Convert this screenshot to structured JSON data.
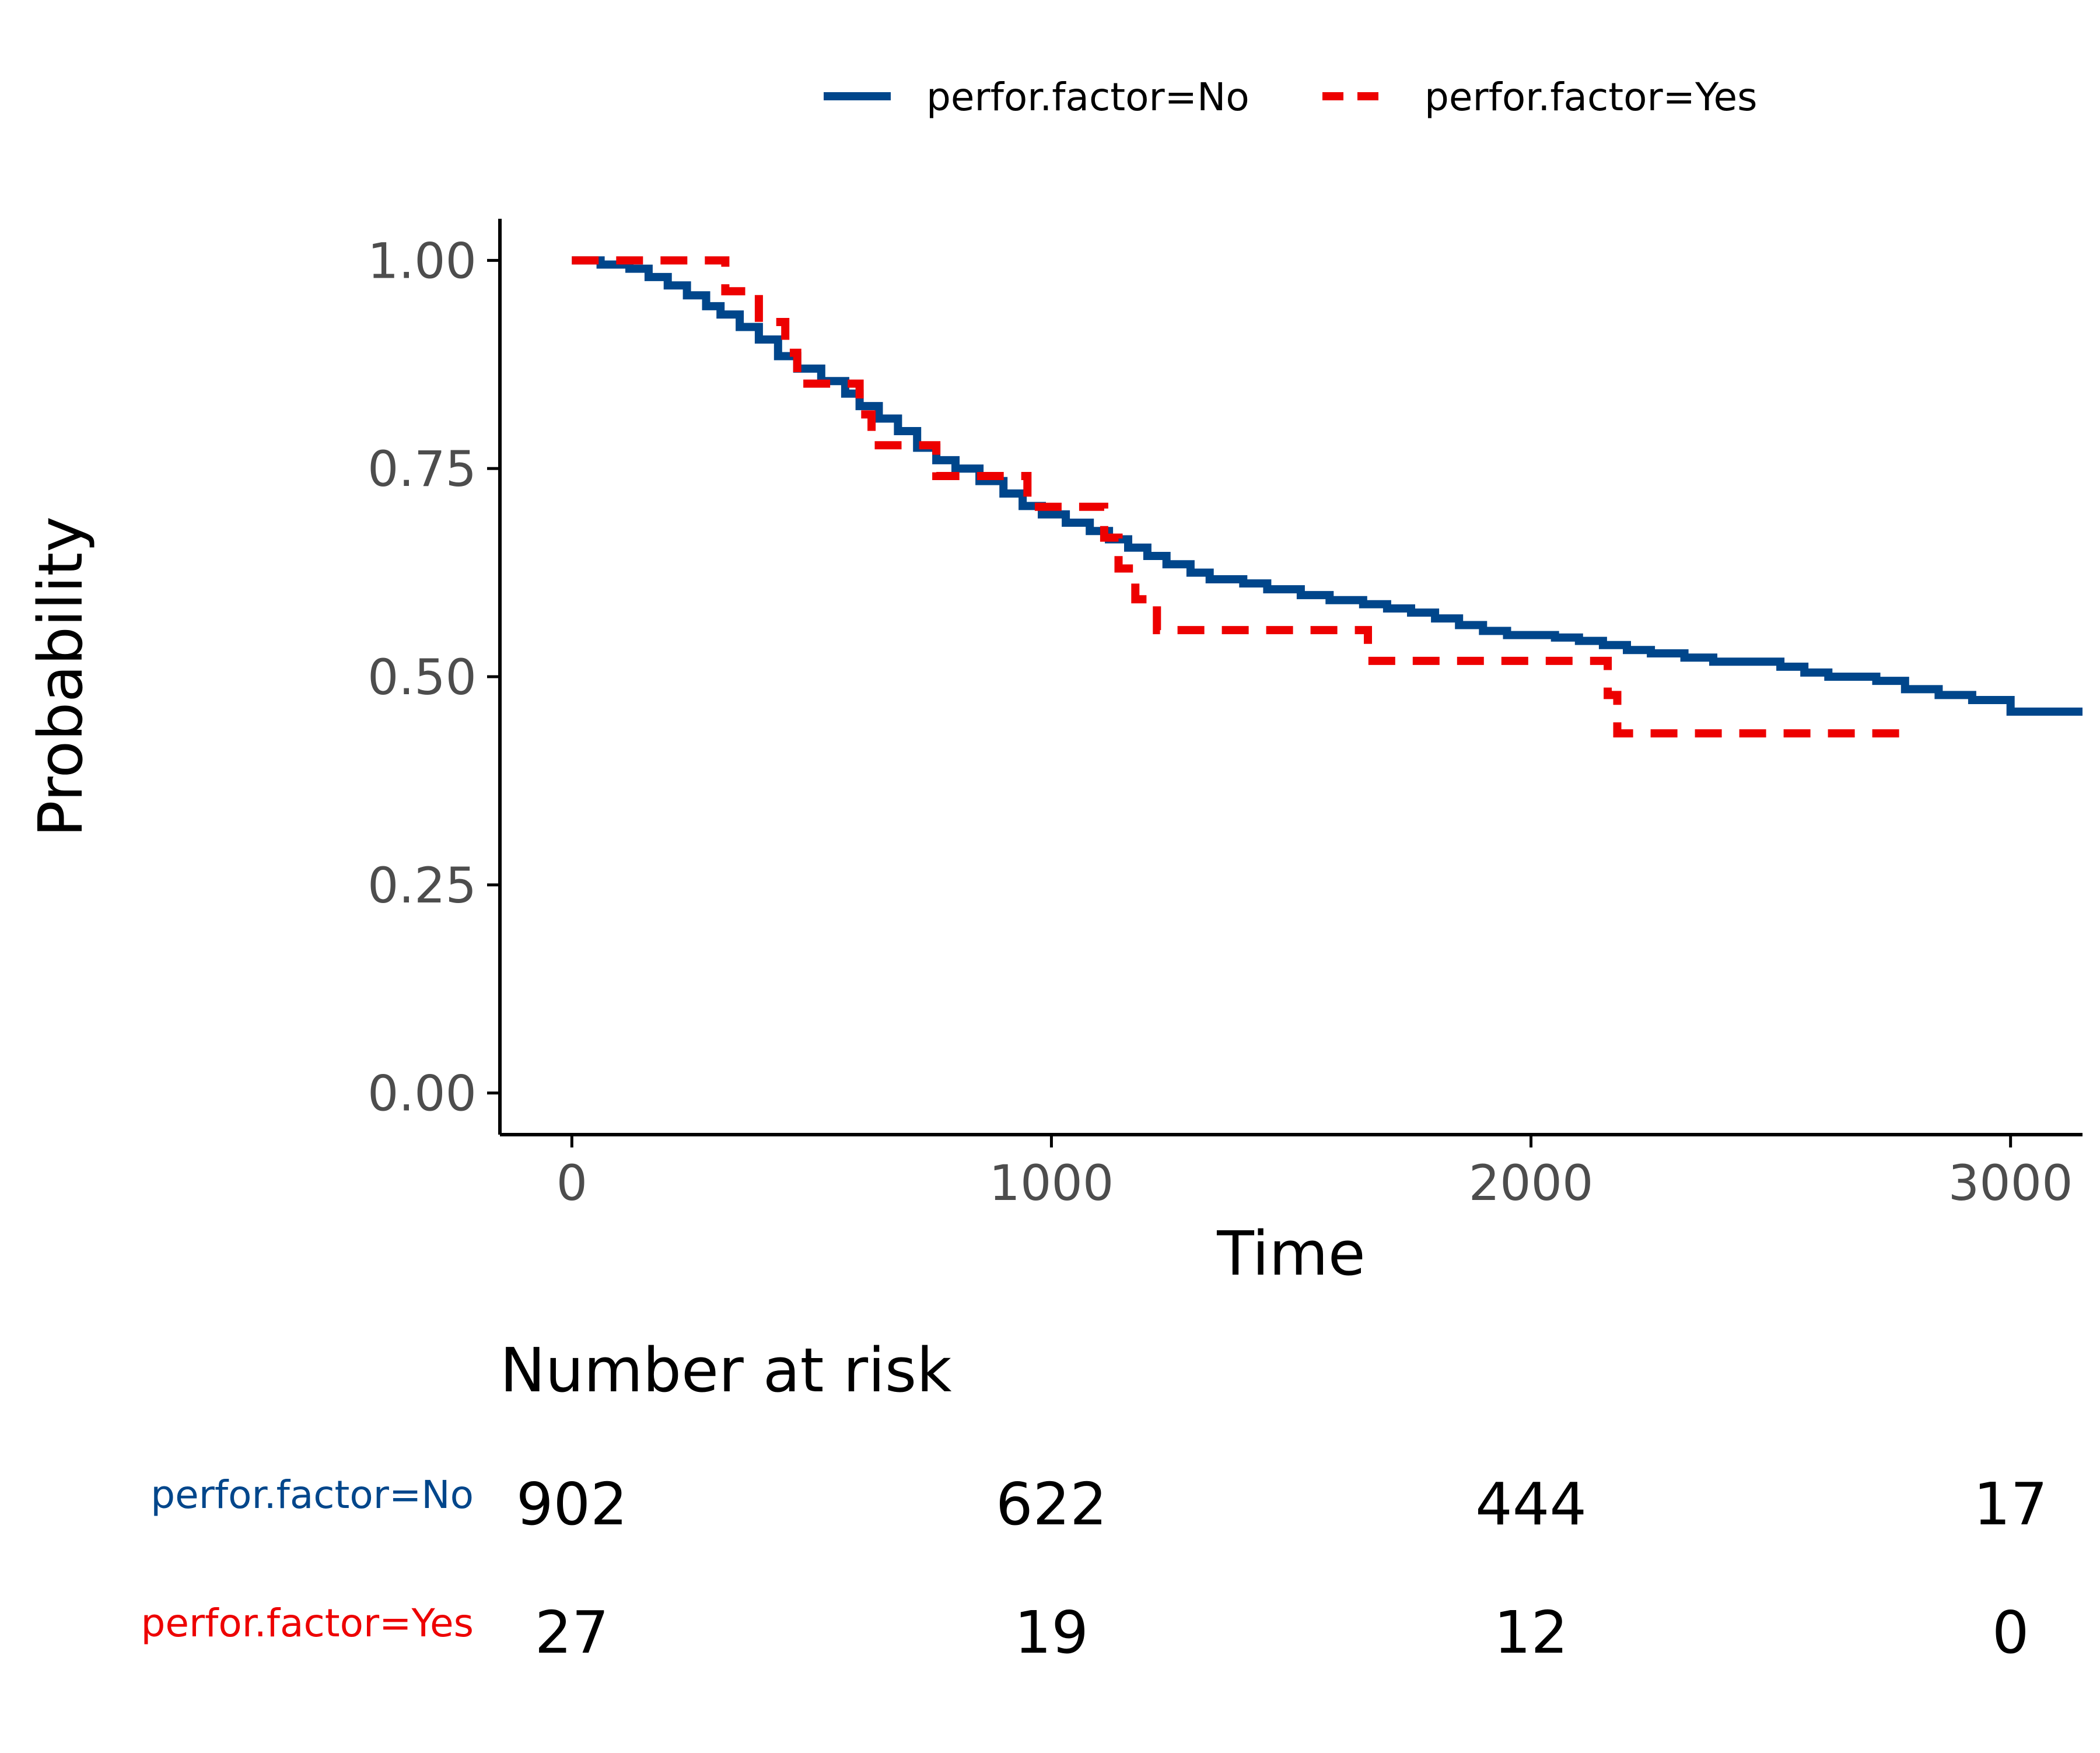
{
  "chart_data": {
    "type": "line",
    "subtype": "kaplan-meier survival curve with risk table",
    "xlabel": "Time",
    "ylabel": "Probability",
    "xlim": [
      -150,
      3150
    ],
    "ylim": [
      -0.05,
      1.05
    ],
    "x_ticks": [
      0,
      1000,
      2000,
      3000
    ],
    "x_tick_labels": [
      "0",
      "1000",
      "2000",
      "3000"
    ],
    "y_ticks": [
      0,
      0.25,
      0.5,
      0.75,
      1.0
    ],
    "y_tick_labels": [
      "0.00",
      "0.25",
      "0.50",
      "0.75",
      "1.00"
    ],
    "grid": false,
    "legend_position": "top",
    "series": [
      {
        "name": "perfor.factor=No",
        "color": "#00468B",
        "line_style": "solid",
        "steps": [
          [
            0,
            1.0
          ],
          [
            60,
            0.995
          ],
          [
            120,
            0.99
          ],
          [
            160,
            0.98
          ],
          [
            200,
            0.97
          ],
          [
            240,
            0.958
          ],
          [
            280,
            0.945
          ],
          [
            310,
            0.935
          ],
          [
            350,
            0.92
          ],
          [
            390,
            0.905
          ],
          [
            430,
            0.885
          ],
          [
            470,
            0.87
          ],
          [
            520,
            0.855
          ],
          [
            570,
            0.84
          ],
          [
            600,
            0.825
          ],
          [
            640,
            0.81
          ],
          [
            680,
            0.795
          ],
          [
            720,
            0.775
          ],
          [
            760,
            0.76
          ],
          [
            800,
            0.75
          ],
          [
            850,
            0.735
          ],
          [
            900,
            0.72
          ],
          [
            940,
            0.705
          ],
          [
            980,
            0.695
          ],
          [
            1030,
            0.685
          ],
          [
            1080,
            0.675
          ],
          [
            1120,
            0.665
          ],
          [
            1160,
            0.655
          ],
          [
            1200,
            0.645
          ],
          [
            1240,
            0.635
          ],
          [
            1290,
            0.625
          ],
          [
            1330,
            0.617
          ],
          [
            1400,
            0.612
          ],
          [
            1450,
            0.605
          ],
          [
            1520,
            0.598
          ],
          [
            1580,
            0.592
          ],
          [
            1650,
            0.587
          ],
          [
            1700,
            0.582
          ],
          [
            1750,
            0.577
          ],
          [
            1800,
            0.57
          ],
          [
            1850,
            0.562
          ],
          [
            1900,
            0.555
          ],
          [
            1950,
            0.55
          ],
          [
            2050,
            0.547
          ],
          [
            2100,
            0.543
          ],
          [
            2150,
            0.538
          ],
          [
            2200,
            0.532
          ],
          [
            2250,
            0.528
          ],
          [
            2320,
            0.523
          ],
          [
            2380,
            0.518
          ],
          [
            2520,
            0.512
          ],
          [
            2570,
            0.505
          ],
          [
            2620,
            0.5
          ],
          [
            2720,
            0.495
          ],
          [
            2780,
            0.485
          ],
          [
            2850,
            0.478
          ],
          [
            2920,
            0.472
          ],
          [
            3000,
            0.458
          ],
          [
            3150,
            0.458
          ]
        ]
      },
      {
        "name": "perfor.factor=Yes",
        "color": "#ED0000",
        "line_style": "dashed",
        "steps": [
          [
            0,
            1.0
          ],
          [
            320,
            0.963
          ],
          [
            390,
            0.926
          ],
          [
            445,
            0.889
          ],
          [
            470,
            0.852
          ],
          [
            600,
            0.815
          ],
          [
            625,
            0.778
          ],
          [
            760,
            0.741
          ],
          [
            950,
            0.704
          ],
          [
            1110,
            0.667
          ],
          [
            1140,
            0.63
          ],
          [
            1175,
            0.593
          ],
          [
            1220,
            0.556
          ],
          [
            1660,
            0.519
          ],
          [
            2160,
            0.478
          ],
          [
            2180,
            0.432
          ],
          [
            2780,
            0.432
          ]
        ]
      }
    ],
    "risk_table": {
      "title": "Number at risk",
      "times": [
        0,
        1000,
        2000,
        3000
      ],
      "rows": [
        {
          "label": "perfor.factor=No",
          "color": "#00468B",
          "counts": [
            "902",
            "622",
            "444",
            "17"
          ]
        },
        {
          "label": "perfor.factor=Yes",
          "color": "#ED0000",
          "counts": [
            "27",
            "19",
            "12",
            "0"
          ]
        }
      ]
    }
  }
}
